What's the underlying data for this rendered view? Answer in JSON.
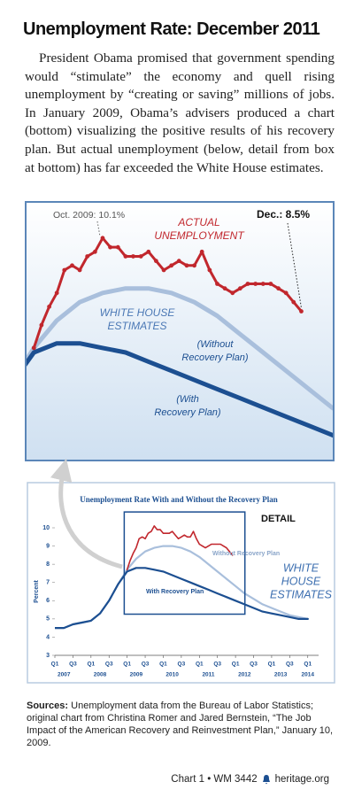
{
  "header": {
    "title": "Unemployment Rate: December 2011"
  },
  "intro": "President Obama promised that government spending would “stimulate” the economy and quell rising unemployment by “creating or saving” millions of jobs. In January 2009, Obama’s advisers produced a chart (bottom) visualizing the positive results of his recovery plan. But actual unemployment (below, detail from box at bottom) has far exceeded the White House estimates.",
  "chart_data": [
    {
      "type": "line",
      "xlim": [
        2008.92,
        2012.26
      ],
      "ylim": [
        5.26,
        10.87
      ],
      "annotations": [
        {
          "text": "Oct. 2009: 10.1%"
        },
        {
          "text": "Dec.: 8.5%"
        }
      ],
      "series_labels": [
        [
          "ACTUAL",
          "UNEMPLOYMENT"
        ],
        [
          "WHITE HOUSE",
          "ESTIMATES"
        ],
        [
          "(Without",
          "Recovery Plan)"
        ],
        [
          "(With",
          "Recovery Plan)"
        ]
      ]
    },
    {
      "type": "line",
      "title": "Unemployment Rate With and Without the Recovery Plan",
      "ylabel": "Percent",
      "xlim": [
        2007,
        2014.3
      ],
      "ylim": [
        3,
        10
      ],
      "yticks": [
        3,
        4,
        5,
        6,
        7,
        8,
        9,
        10
      ],
      "xticks": [
        {
          "value": 2007,
          "label": "Q1"
        },
        {
          "value": 2007.5,
          "label": "Q3"
        },
        {
          "value": 2008,
          "label": "Q1"
        },
        {
          "value": 2008.5,
          "label": "Q3"
        },
        {
          "value": 2009,
          "label": "Q1"
        },
        {
          "value": 2009.5,
          "label": "Q3"
        },
        {
          "value": 2010,
          "label": "Q1"
        },
        {
          "value": 2010.5,
          "label": "Q3"
        },
        {
          "value": 2011,
          "label": "Q1"
        },
        {
          "value": 2011.5,
          "label": "Q3"
        },
        {
          "value": 2012,
          "label": "Q1"
        },
        {
          "value": 2012.5,
          "label": "Q3"
        },
        {
          "value": 2013,
          "label": "Q1"
        },
        {
          "value": 2013.5,
          "label": "Q3"
        },
        {
          "value": 2014,
          "label": "Q1"
        }
      ],
      "year_labels": [
        {
          "value": 2007.25,
          "label": "2007"
        },
        {
          "value": 2008.25,
          "label": "2008"
        },
        {
          "value": 2009.25,
          "label": "2009"
        },
        {
          "value": 2010.25,
          "label": "2010"
        },
        {
          "value": 2011.25,
          "label": "2011"
        },
        {
          "value": 2012.25,
          "label": "2012"
        },
        {
          "value": 2013.25,
          "label": "2013"
        },
        {
          "value": 2014,
          "label": "2014"
        }
      ],
      "series": [
        {
          "name": "Without Recovery Plan",
          "color": "#a9bfdc",
          "x": [
            2007,
            2007.25,
            2007.5,
            2007.75,
            2008,
            2008.25,
            2008.5,
            2008.75,
            2009,
            2009.25,
            2009.5,
            2009.75,
            2010,
            2010.25,
            2010.5,
            2010.75,
            2011,
            2011.25,
            2011.5,
            2011.75,
            2012,
            2012.25,
            2012.5,
            2012.75,
            2013,
            2013.25,
            2013.5,
            2013.75,
            2014
          ],
          "values": [
            4.5,
            4.5,
            4.7,
            4.8,
            4.9,
            5.3,
            6.0,
            6.9,
            7.7,
            8.3,
            8.7,
            8.9,
            9.0,
            9.0,
            8.9,
            8.7,
            8.4,
            8.0,
            7.6,
            7.2,
            6.8,
            6.4,
            6.1,
            5.8,
            5.6,
            5.4,
            5.2,
            5.1,
            5.0
          ]
        },
        {
          "name": "With Recovery Plan",
          "color": "#1c4f91",
          "x": [
            2007,
            2007.25,
            2007.5,
            2007.75,
            2008,
            2008.25,
            2008.5,
            2008.75,
            2009,
            2009.25,
            2009.5,
            2009.75,
            2010,
            2010.25,
            2010.5,
            2010.75,
            2011,
            2011.25,
            2011.5,
            2011.75,
            2012,
            2012.25,
            2012.5,
            2012.75,
            2013,
            2013.25,
            2013.5,
            2013.75,
            2014
          ],
          "values": [
            4.5,
            4.5,
            4.7,
            4.8,
            4.9,
            5.3,
            6.0,
            6.9,
            7.6,
            7.8,
            7.8,
            7.7,
            7.6,
            7.4,
            7.2,
            7.0,
            6.8,
            6.6,
            6.4,
            6.2,
            6.0,
            5.8,
            5.6,
            5.4,
            5.3,
            5.2,
            5.1,
            5.0,
            5.0
          ]
        },
        {
          "color": "#c1272d",
          "x": [
            2009,
            2009.083,
            2009.167,
            2009.25,
            2009.333,
            2009.417,
            2009.5,
            2009.583,
            2009.667,
            2009.75,
            2009.833,
            2009.917,
            2010,
            2010.083,
            2010.167,
            2010.25,
            2010.333,
            2010.417,
            2010.5,
            2010.583,
            2010.667,
            2010.75,
            2010.833,
            2010.917,
            2011,
            2011.083,
            2011.167,
            2011.25,
            2011.333,
            2011.417,
            2011.5,
            2011.583,
            2011.667,
            2011.75,
            2011.833,
            2011.917
          ],
          "values": [
            7.7,
            8.2,
            8.6,
            8.9,
            9.4,
            9.5,
            9.4,
            9.7,
            9.8,
            10.1,
            9.9,
            9.9,
            9.7,
            9.7,
            9.7,
            9.8,
            9.6,
            9.4,
            9.5,
            9.6,
            9.5,
            9.5,
            9.8,
            9.4,
            9.1,
            9.0,
            8.9,
            9.0,
            9.1,
            9.1,
            9.1,
            9.1,
            9.0,
            8.9,
            8.7,
            8.5
          ]
        }
      ],
      "annotations": [
        {
          "text": "DETAIL"
        },
        {
          "lines": [
            "WHITE",
            "HOUSE",
            "ESTIMATES"
          ]
        }
      ]
    }
  ],
  "footer": {
    "sources_label": "Sources:",
    "sources_text": "Unemployment data from the Bureau of Labor Statistics; original chart from Christina Romer and Jared Bernstein, “The Job Impact of the American Recovery and Reinvestment Plan,” January 10, 2009.",
    "credit": "Chart 1 • WM 3442",
    "site": "heritage.org"
  }
}
